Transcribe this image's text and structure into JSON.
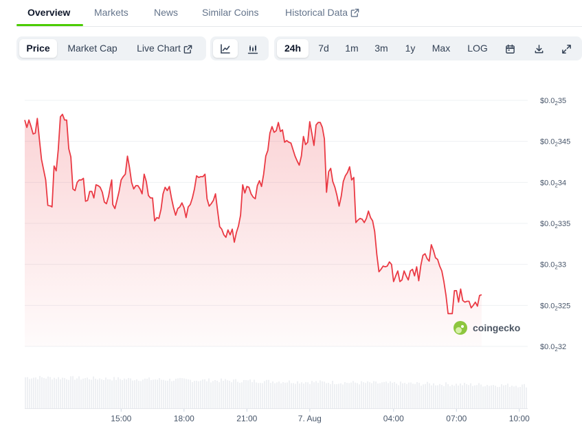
{
  "nav": {
    "tabs": [
      {
        "label": "Overview"
      },
      {
        "label": "Markets"
      },
      {
        "label": "News"
      },
      {
        "label": "Similar Coins"
      },
      {
        "label": "Historical Data"
      }
    ],
    "active": "Overview"
  },
  "toolbar": {
    "metric_tabs": [
      {
        "label": "Price"
      },
      {
        "label": "Market Cap"
      },
      {
        "label": "Live Chart"
      }
    ],
    "active_metric": "Price",
    "chart_styles": [
      "line-chart-icon",
      "candlestick-icon"
    ],
    "active_style": "line",
    "ranges": [
      {
        "label": "24h"
      },
      {
        "label": "7d"
      },
      {
        "label": "1m"
      },
      {
        "label": "3m"
      },
      {
        "label": "1y"
      },
      {
        "label": "Max"
      },
      {
        "label": "LOG"
      }
    ],
    "active_range": "24h",
    "tools": [
      "calendar-icon",
      "download-icon",
      "fullscreen-icon"
    ]
  },
  "watermark": "coingecko",
  "colors": {
    "accent": "#4bcc00",
    "line": "#ea3943",
    "area": "#fde2e3"
  },
  "chart_data": {
    "type": "area",
    "y_axis_position": "right",
    "y_axis_note": "tick labels use subscript zero-count notation: $0.0₂35 = $0.0035",
    "y_ticks": [
      {
        "value": 0.0032,
        "pre": "$0.0",
        "sub": "2",
        "post": "32"
      },
      {
        "value": 0.00325,
        "pre": "$0.0",
        "sub": "2",
        "post": "325"
      },
      {
        "value": 0.0033,
        "pre": "$0.0",
        "sub": "2",
        "post": "33"
      },
      {
        "value": 0.00335,
        "pre": "$0.0",
        "sub": "2",
        "post": "335"
      },
      {
        "value": 0.0034,
        "pre": "$0.0",
        "sub": "2",
        "post": "34"
      },
      {
        "value": 0.00345,
        "pre": "$0.0",
        "sub": "2",
        "post": "345"
      },
      {
        "value": 0.0035,
        "pre": "$0.0",
        "sub": "2",
        "post": "35"
      }
    ],
    "ylim": [
      0.0032,
      0.0035
    ],
    "grid": true,
    "x_ticks": [
      "15:00",
      "18:00",
      "21:00",
      "7. Aug",
      "04:00",
      "07:00",
      "10:00"
    ],
    "x_tick_hours": [
      3,
      6,
      9,
      12,
      16,
      19,
      22
    ],
    "x_range_hours": [
      -1.6,
      22.4
    ],
    "price": [
      [
        -1.6,
        0.003476
      ],
      [
        -1.5,
        0.003467
      ],
      [
        -1.4,
        0.003476
      ],
      [
        -1.3,
        0.003468
      ],
      [
        -1.2,
        0.003459
      ],
      [
        -1.1,
        0.00346
      ],
      [
        -1.0,
        0.003478
      ],
      [
        -0.9,
        0.003452
      ],
      [
        -0.8,
        0.003428
      ],
      [
        -0.6,
        0.003403
      ],
      [
        -0.5,
        0.003372
      ],
      [
        -0.35,
        0.003371
      ],
      [
        -0.3,
        0.00337
      ],
      [
        -0.2,
        0.00342
      ],
      [
        -0.1,
        0.003414
      ],
      [
        0.0,
        0.00344
      ],
      [
        0.1,
        0.00348
      ],
      [
        0.2,
        0.003483
      ],
      [
        0.3,
        0.003476
      ],
      [
        0.4,
        0.003476
      ],
      [
        0.5,
        0.003441
      ],
      [
        0.6,
        0.003431
      ],
      [
        0.7,
        0.003392
      ],
      [
        0.8,
        0.00339
      ],
      [
        0.9,
        0.0034
      ],
      [
        1.0,
        0.003403
      ],
      [
        1.1,
        0.003403
      ],
      [
        1.2,
        0.003405
      ],
      [
        1.3,
        0.003377
      ],
      [
        1.4,
        0.003378
      ],
      [
        1.5,
        0.003389
      ],
      [
        1.6,
        0.003389
      ],
      [
        1.7,
        0.003381
      ],
      [
        1.8,
        0.003397
      ],
      [
        1.9,
        0.003396
      ],
      [
        2.0,
        0.003394
      ],
      [
        2.1,
        0.003388
      ],
      [
        2.2,
        0.003376
      ],
      [
        2.3,
        0.003374
      ],
      [
        2.4,
        0.003383
      ],
      [
        2.5,
        0.003397
      ],
      [
        2.55,
        0.003403
      ],
      [
        2.6,
        0.003373
      ],
      [
        2.7,
        0.003368
      ],
      [
        2.8,
        0.003378
      ],
      [
        2.9,
        0.003389
      ],
      [
        3.0,
        0.003403
      ],
      [
        3.1,
        0.003407
      ],
      [
        3.2,
        0.00341
      ],
      [
        3.3,
        0.003432
      ],
      [
        3.4,
        0.003418
      ],
      [
        3.5,
        0.0034
      ],
      [
        3.6,
        0.003392
      ],
      [
        3.7,
        0.003396
      ],
      [
        3.8,
        0.003396
      ],
      [
        3.9,
        0.003392
      ],
      [
        4.0,
        0.003386
      ],
      [
        4.1,
        0.00341
      ],
      [
        4.2,
        0.003401
      ],
      [
        4.3,
        0.003384
      ],
      [
        4.4,
        0.003381
      ],
      [
        4.5,
        0.003381
      ],
      [
        4.6,
        0.003353
      ],
      [
        4.7,
        0.003357
      ],
      [
        4.8,
        0.003356
      ],
      [
        4.9,
        0.003367
      ],
      [
        5.0,
        0.003386
      ],
      [
        5.1,
        0.003394
      ],
      [
        5.2,
        0.00339
      ],
      [
        5.3,
        0.003395
      ],
      [
        5.4,
        0.003381
      ],
      [
        5.5,
        0.003369
      ],
      [
        5.6,
        0.00336
      ],
      [
        5.7,
        0.003368
      ],
      [
        5.8,
        0.00337
      ],
      [
        5.9,
        0.003375
      ],
      [
        6.0,
        0.003369
      ],
      [
        6.1,
        0.003357
      ],
      [
        6.2,
        0.00337
      ],
      [
        6.3,
        0.003373
      ],
      [
        6.4,
        0.003381
      ],
      [
        6.5,
        0.003392
      ],
      [
        6.6,
        0.003408
      ],
      [
        6.7,
        0.003406
      ],
      [
        6.8,
        0.003407
      ],
      [
        6.9,
        0.003407
      ],
      [
        7.0,
        0.00341
      ],
      [
        7.1,
        0.00338
      ],
      [
        7.2,
        0.003371
      ],
      [
        7.3,
        0.003374
      ],
      [
        7.4,
        0.003378
      ],
      [
        7.5,
        0.003386
      ],
      [
        7.6,
        0.003366
      ],
      [
        7.7,
        0.003346
      ],
      [
        7.8,
        0.003343
      ],
      [
        7.9,
        0.003336
      ],
      [
        8.0,
        0.003333
      ],
      [
        8.1,
        0.003342
      ],
      [
        8.2,
        0.003336
      ],
      [
        8.3,
        0.003343
      ],
      [
        8.4,
        0.003327
      ],
      [
        8.5,
        0.003339
      ],
      [
        8.6,
        0.003347
      ],
      [
        8.7,
        0.00336
      ],
      [
        8.8,
        0.003397
      ],
      [
        8.9,
        0.003387
      ],
      [
        9.0,
        0.003395
      ],
      [
        9.1,
        0.003394
      ],
      [
        9.2,
        0.003386
      ],
      [
        9.3,
        0.003382
      ],
      [
        9.4,
        0.00338
      ],
      [
        9.5,
        0.003396
      ],
      [
        9.6,
        0.003402
      ],
      [
        9.7,
        0.003395
      ],
      [
        9.8,
        0.00341
      ],
      [
        9.9,
        0.003432
      ],
      [
        10.0,
        0.003439
      ],
      [
        10.1,
        0.00346
      ],
      [
        10.2,
        0.003468
      ],
      [
        10.3,
        0.003461
      ],
      [
        10.4,
        0.003463
      ],
      [
        10.5,
        0.003473
      ],
      [
        10.6,
        0.003462
      ],
      [
        10.7,
        0.003464
      ],
      [
        10.8,
        0.003449
      ],
      [
        10.9,
        0.003451
      ],
      [
        11.0,
        0.003449
      ],
      [
        11.1,
        0.003448
      ],
      [
        11.2,
        0.00344
      ],
      [
        11.3,
        0.003432
      ],
      [
        11.4,
        0.003426
      ],
      [
        11.5,
        0.003421
      ],
      [
        11.6,
        0.003432
      ],
      [
        11.7,
        0.003456
      ],
      [
        11.8,
        0.003446
      ],
      [
        11.9,
        0.003449
      ],
      [
        12.0,
        0.003474
      ],
      [
        12.1,
        0.00346
      ],
      [
        12.2,
        0.003445
      ],
      [
        12.3,
        0.00347
      ],
      [
        12.4,
        0.003473
      ],
      [
        12.5,
        0.003473
      ],
      [
        12.6,
        0.003467
      ],
      [
        12.7,
        0.003453
      ],
      [
        12.8,
        0.003388
      ],
      [
        12.9,
        0.003413
      ],
      [
        13.0,
        0.003417
      ],
      [
        13.1,
        0.003401
      ],
      [
        13.2,
        0.003394
      ],
      [
        13.3,
        0.003384
      ],
      [
        13.4,
        0.003371
      ],
      [
        13.5,
        0.003383
      ],
      [
        13.6,
        0.003401
      ],
      [
        13.7,
        0.003408
      ],
      [
        13.8,
        0.003412
      ],
      [
        13.9,
        0.003419
      ],
      [
        14.0,
        0.003403
      ],
      [
        14.1,
        0.003406
      ],
      [
        14.2,
        0.003351
      ],
      [
        14.3,
        0.003354
      ],
      [
        14.4,
        0.003356
      ],
      [
        14.5,
        0.003355
      ],
      [
        14.6,
        0.003351
      ],
      [
        14.7,
        0.003356
      ],
      [
        14.8,
        0.003365
      ],
      [
        14.9,
        0.003357
      ],
      [
        15.0,
        0.003353
      ],
      [
        15.1,
        0.00334
      ],
      [
        15.2,
        0.003312
      ],
      [
        15.3,
        0.003291
      ],
      [
        15.4,
        0.003294
      ],
      [
        15.5,
        0.003298
      ],
      [
        15.6,
        0.003297
      ],
      [
        15.7,
        0.003298
      ],
      [
        15.8,
        0.003303
      ],
      [
        15.9,
        0.0033
      ],
      [
        16.0,
        0.003279
      ],
      [
        16.1,
        0.003286
      ],
      [
        16.2,
        0.003292
      ],
      [
        16.3,
        0.003279
      ],
      [
        16.4,
        0.003281
      ],
      [
        16.5,
        0.003292
      ],
      [
        16.6,
        0.003286
      ],
      [
        16.7,
        0.003281
      ],
      [
        16.8,
        0.003292
      ],
      [
        16.9,
        0.003294
      ],
      [
        17.0,
        0.003286
      ],
      [
        17.1,
        0.003297
      ],
      [
        17.2,
        0.00328
      ],
      [
        17.3,
        0.003299
      ],
      [
        17.4,
        0.003311
      ],
      [
        17.5,
        0.003313
      ],
      [
        17.6,
        0.003307
      ],
      [
        17.7,
        0.003304
      ],
      [
        17.8,
        0.003324
      ],
      [
        17.9,
        0.003317
      ],
      [
        18.0,
        0.003308
      ],
      [
        18.1,
        0.003306
      ],
      [
        18.2,
        0.003298
      ],
      [
        18.3,
        0.003292
      ],
      [
        18.4,
        0.003279
      ],
      [
        18.5,
        0.003262
      ],
      [
        18.6,
        0.00324
      ],
      [
        18.7,
        0.00324
      ],
      [
        18.8,
        0.00324
      ],
      [
        18.9,
        0.003268
      ],
      [
        19.0,
        0.003268
      ],
      [
        19.1,
        0.003254
      ],
      [
        19.2,
        0.00327
      ],
      [
        19.3,
        0.003256
      ],
      [
        19.4,
        0.003254
      ],
      [
        19.5,
        0.003255
      ],
      [
        19.6,
        0.003255
      ],
      [
        19.7,
        0.003247
      ],
      [
        19.8,
        0.00325
      ],
      [
        19.9,
        0.003254
      ],
      [
        20.0,
        0.003249
      ],
      [
        20.1,
        0.003262
      ],
      [
        20.2,
        0.003263
      ]
    ],
    "volume_bars": true
  }
}
